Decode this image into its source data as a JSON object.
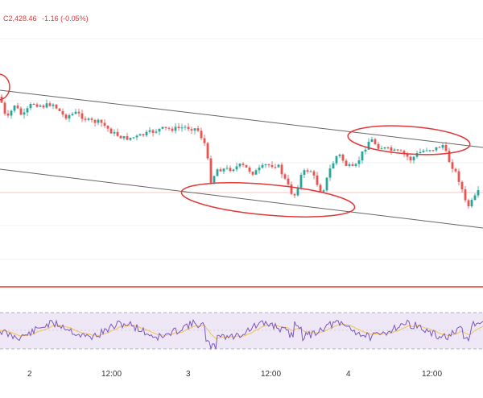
{
  "legend": {
    "close_label": "C2,428.46",
    "change": "-1.16 (-0.05%)"
  },
  "xaxis": {
    "ticks": [
      "2",
      "12:00",
      "3",
      "12:00",
      "4",
      "12:00"
    ]
  },
  "colors": {
    "up": "#26a69a",
    "down": "#ef5350",
    "rsi": "#7e57c2",
    "rsi_ma": "#f3c349",
    "rsi_band": "#ede7f6",
    "annotation": "#e03a3a",
    "channel": "#666666"
  },
  "chart_data": {
    "type": "candlestick",
    "bars": 145,
    "indicators": [
      "RSI",
      "RSI moving average"
    ],
    "annotations": [
      "descending channel (2 parallel lines)",
      "3 red ellipses marking touches",
      "horizontal red support line"
    ]
  }
}
